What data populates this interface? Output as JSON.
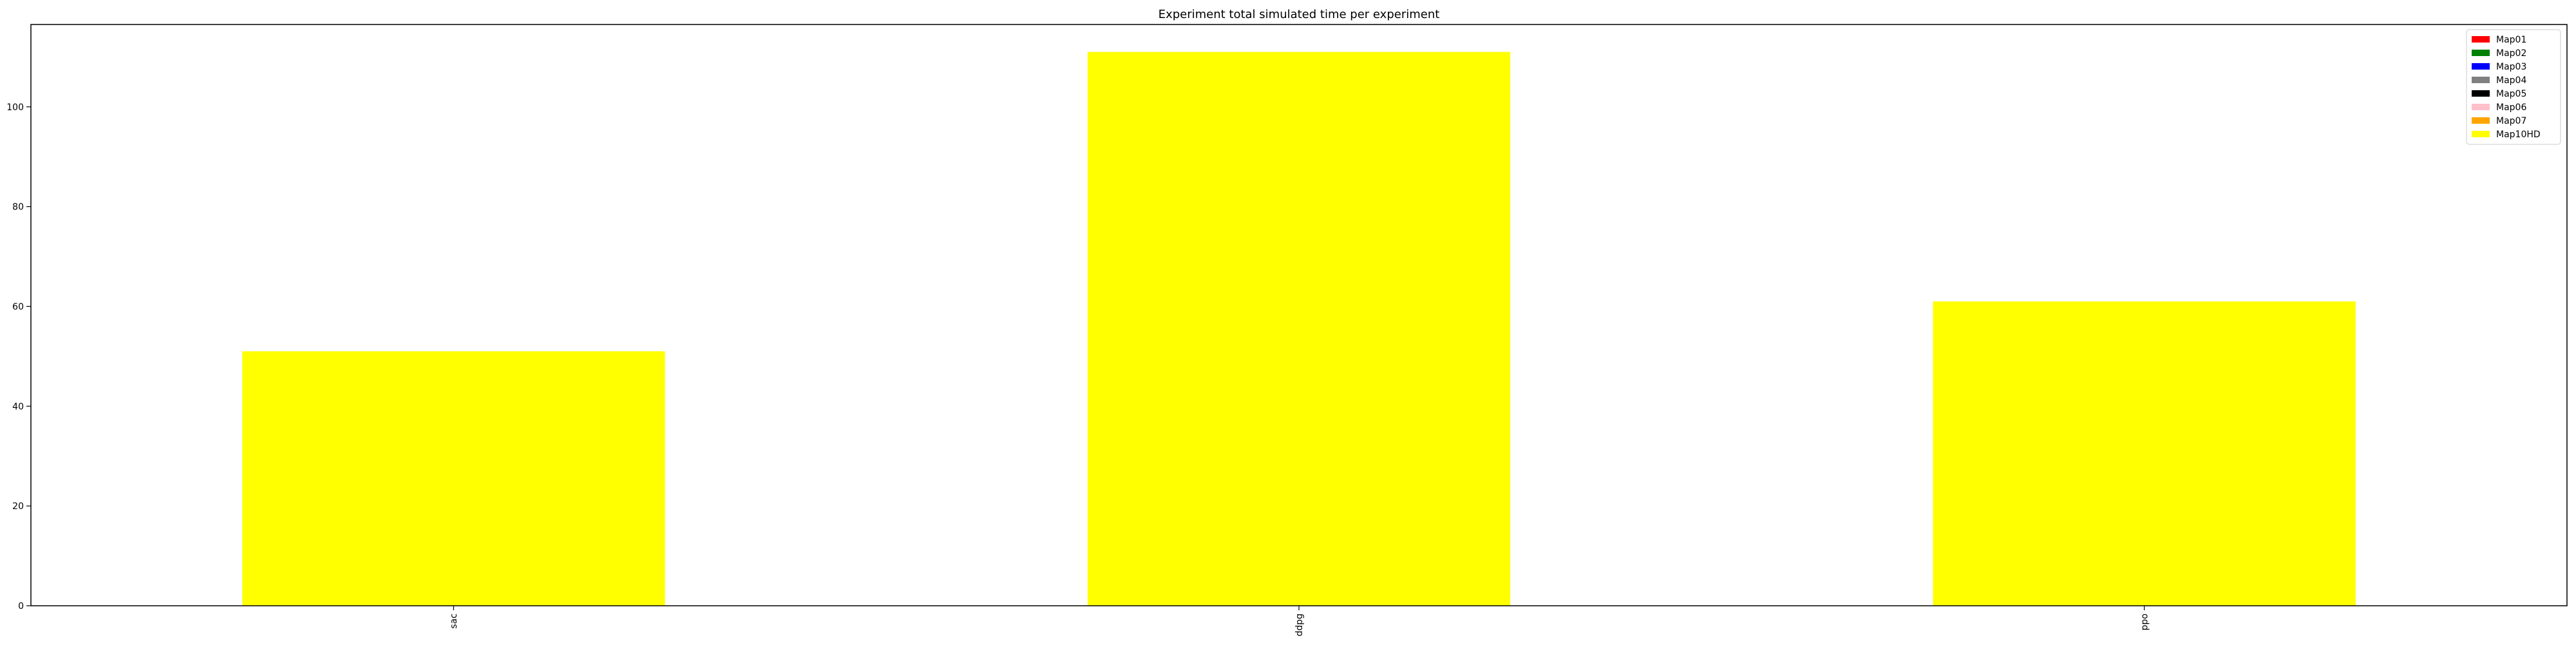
{
  "chart_data": {
    "type": "bar",
    "stacked": true,
    "title": "Experiment total simulated time per experiment",
    "xlabel": "",
    "ylabel": "",
    "categories": [
      "sac",
      "ddpg",
      "ppo"
    ],
    "ylim": [
      0,
      116.5
    ],
    "yticks": [
      0,
      20,
      40,
      60,
      80,
      100
    ],
    "grid": false,
    "legend_position": "top-right",
    "series": [
      {
        "name": "Map01",
        "color": "#ff0000",
        "values": [
          0,
          0,
          0
        ]
      },
      {
        "name": "Map02",
        "color": "#008000",
        "values": [
          0,
          0,
          0
        ]
      },
      {
        "name": "Map03",
        "color": "#0000ff",
        "values": [
          0,
          0,
          0
        ]
      },
      {
        "name": "Map04",
        "color": "#808080",
        "values": [
          0,
          0,
          0
        ]
      },
      {
        "name": "Map05",
        "color": "#000000",
        "values": [
          0,
          0,
          0
        ]
      },
      {
        "name": "Map06",
        "color": "#ffc0cb",
        "values": [
          0,
          0,
          0
        ]
      },
      {
        "name": "Map07",
        "color": "#ffa500",
        "values": [
          0,
          0,
          0
        ]
      },
      {
        "name": "Map10HD",
        "color": "#ffff00",
        "values": [
          51,
          111,
          61
        ]
      }
    ]
  }
}
